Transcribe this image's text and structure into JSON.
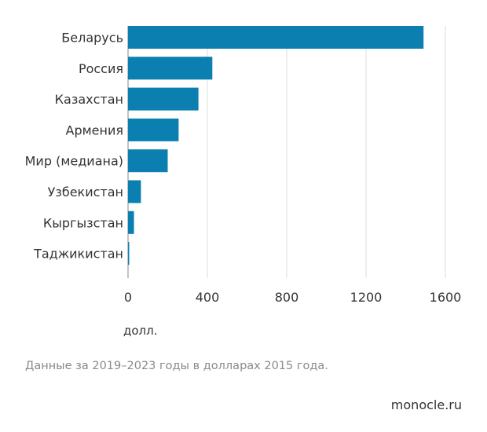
{
  "chart_data": {
    "type": "bar",
    "orientation": "horizontal",
    "categories": [
      "Беларусь",
      "Россия",
      "Казахстан",
      "Армения",
      "Мир (медиана)",
      "Узбекистан",
      "Кыргызстан",
      "Таджикистан"
    ],
    "values": [
      1490,
      425,
      355,
      255,
      200,
      65,
      30,
      5
    ],
    "xlim": [
      0,
      1600
    ],
    "xticks": [
      "0",
      "400",
      "800",
      "1200",
      "1600"
    ],
    "xlabel": "долл.",
    "grid": true,
    "bar_color": "#0a7fb0"
  },
  "note": "Данные за 2019–2023 годы в долларах 2015 года.",
  "source": "monocle.ru"
}
